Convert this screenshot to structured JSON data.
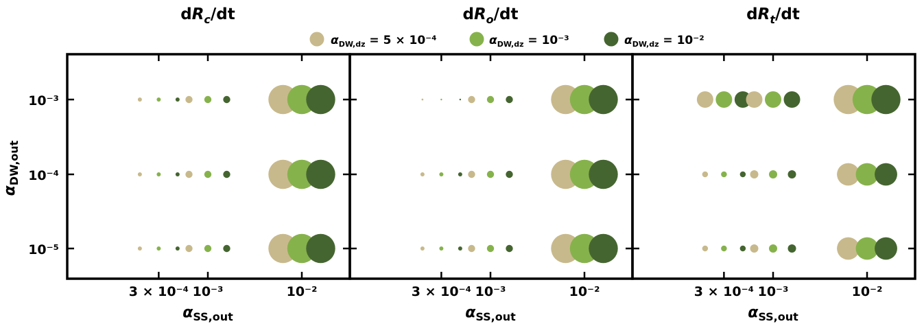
{
  "chart_data": {
    "type": "scatter",
    "encoding": "marker area proportional to value; color = series",
    "xscale": "log",
    "yscale": "log",
    "x": [
      0.0003,
      0.001,
      0.01
    ],
    "y": [
      0.001,
      0.0001,
      1e-05
    ],
    "x_tick_labels": [
      "3 × 10⁻⁴",
      "10⁻³",
      "10⁻²"
    ],
    "y_tick_labels": [
      "10⁻³",
      "10⁻⁴",
      "10⁻⁵"
    ],
    "xlabel": "α_SS,out",
    "ylabel": "α_DW,out",
    "legend_position": "top-center",
    "series": [
      {
        "name": "α_DW,dz = 5 × 10⁻⁴",
        "color": "#c8b98c"
      },
      {
        "name": "α_DW,dz = 10⁻³",
        "color": "#86b24c"
      },
      {
        "name": "α_DW,dz = 10⁻²",
        "color": "#456530"
      }
    ],
    "panels": [
      {
        "title": "dR_c/dt",
        "sizes": [
          [
            [
              0.1,
              0.1,
              0.1
            ],
            [
              0.3,
              0.3,
              0.3
            ],
            [
              5.0,
              5.0,
              5.0
            ]
          ],
          [
            [
              0.1,
              0.1,
              0.1
            ],
            [
              0.3,
              0.3,
              0.3
            ],
            [
              5.0,
              5.0,
              5.0
            ]
          ],
          [
            [
              0.1,
              0.1,
              0.1
            ],
            [
              0.3,
              0.3,
              0.3
            ],
            [
              5.0,
              5.0,
              5.0
            ]
          ]
        ]
      },
      {
        "title": "dR_o/dt",
        "sizes": [
          [
            [
              0.02,
              0.01,
              0.005
            ],
            [
              0.3,
              0.3,
              0.3
            ],
            [
              5.0,
              5.0,
              5.0
            ]
          ],
          [
            [
              0.1,
              0.1,
              0.1
            ],
            [
              0.3,
              0.3,
              0.3
            ],
            [
              5.0,
              5.0,
              5.0
            ]
          ],
          [
            [
              0.1,
              0.1,
              0.1
            ],
            [
              0.3,
              0.3,
              0.3
            ],
            [
              5.0,
              5.0,
              5.0
            ]
          ]
        ]
      },
      {
        "title": "dR_t/dt",
        "sizes": [
          [
            [
              1.6,
              1.6,
              1.6
            ],
            [
              1.6,
              1.6,
              1.6
            ],
            [
              5.0,
              5.0,
              5.0
            ]
          ],
          [
            [
              0.2,
              0.2,
              0.2
            ],
            [
              0.4,
              0.4,
              0.4
            ],
            [
              3.0,
              3.0,
              3.0
            ]
          ],
          [
            [
              0.2,
              0.2,
              0.2
            ],
            [
              0.4,
              0.4,
              0.4
            ],
            [
              3.0,
              3.0,
              3.0
            ]
          ]
        ]
      }
    ]
  }
}
